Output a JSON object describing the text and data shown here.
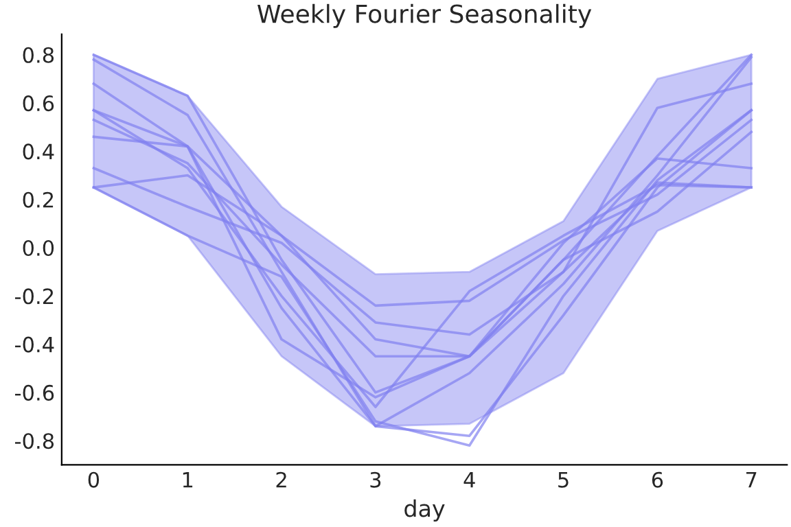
{
  "chart_data": {
    "type": "line",
    "title": "Weekly Fourier Seasonality",
    "xlabel": "day",
    "x": [
      0,
      1,
      2,
      3,
      4,
      5,
      6,
      7
    ],
    "xlim": [
      -0.34,
      7.38
    ],
    "xticks": [
      0,
      1,
      2,
      3,
      4,
      5,
      6,
      7
    ],
    "ylim": [
      -0.9,
      0.885
    ],
    "yticks": [
      -0.8,
      -0.6,
      -0.4,
      -0.2,
      {
        "value": 0,
        "label": "0.0"
      },
      0.2,
      0.4,
      0.6,
      0.8
    ],
    "grid": false,
    "legend": false,
    "series": [
      {
        "color": "#8080f0",
        "values": [
          0.8,
          0.63,
          -0.05,
          -0.6,
          -0.45,
          -0.05,
          0.38,
          0.8
        ],
        "lower": [
          0.25,
          0.05,
          -0.45,
          -0.74,
          -0.73,
          -0.52,
          0.07,
          0.25
        ],
        "upper": [
          0.8,
          0.63,
          0.17,
          -0.11,
          -0.1,
          0.11,
          0.7,
          0.8
        ]
      },
      {
        "color": "#8080f0",
        "values": [
          0.78,
          0.55,
          -0.1,
          -0.74,
          -0.52,
          -0.15,
          0.3,
          0.79
        ]
      },
      {
        "color": "#8080f0",
        "values": [
          0.68,
          0.42,
          -0.38,
          -0.62,
          -0.45,
          -0.1,
          0.58,
          0.68
        ]
      },
      {
        "color": "#8080f0",
        "values": [
          0.57,
          0.42,
          -0.25,
          -0.74,
          -0.78,
          -0.28,
          0.25,
          0.57
        ]
      },
      {
        "color": "#8080f0",
        "values": [
          0.53,
          0.35,
          -0.07,
          -0.45,
          -0.45,
          0.02,
          0.37,
          0.33
        ]
      },
      {
        "color": "#8080f0",
        "values": [
          0.46,
          0.42,
          0.05,
          -0.24,
          -0.22,
          0.03,
          0.22,
          0.53
        ]
      },
      {
        "color": "#8080f0",
        "values": [
          0.33,
          0.17,
          0.02,
          -0.31,
          -0.36,
          -0.1,
          0.27,
          0.25
        ]
      },
      {
        "color": "#8080f0",
        "values": [
          0.25,
          0.3,
          0.05,
          -0.38,
          -0.45,
          -0.05,
          0.15,
          0.48
        ]
      },
      {
        "color": "#8080f0",
        "values": [
          0.25,
          0.05,
          -0.12,
          -0.72,
          -0.82,
          -0.2,
          0.28,
          0.57
        ]
      },
      {
        "color": "#8080f0",
        "values": [
          0.57,
          0.33,
          -0.2,
          -0.66,
          -0.18,
          0.05,
          0.26,
          0.25
        ]
      }
    ]
  }
}
